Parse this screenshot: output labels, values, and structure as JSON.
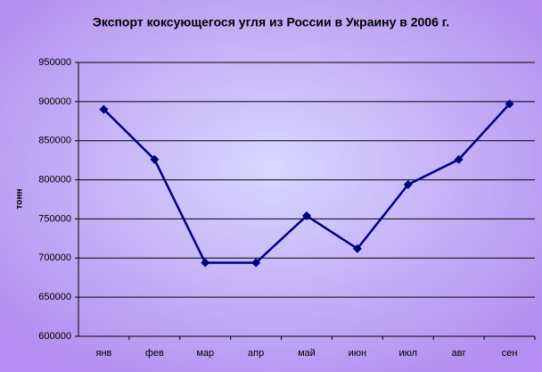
{
  "chart_data": {
    "type": "line",
    "title": "Экспорт коксующегося угля из России в Украину в 2006 г.",
    "y_label": "тонн",
    "categories": [
      "янв",
      "фев",
      "мар",
      "апр",
      "май",
      "июн",
      "июл",
      "авг",
      "сен"
    ],
    "series": [
      {
        "color": "#000080",
        "values": [
          890000,
          826000,
          694000,
          694000,
          754000,
          712000,
          794000,
          826000,
          897000
        ]
      }
    ],
    "ylim": [
      600000,
      950000
    ],
    "yticks": [
      600000,
      650000,
      700000,
      750000,
      800000,
      850000,
      900000,
      950000
    ],
    "grid": true
  }
}
